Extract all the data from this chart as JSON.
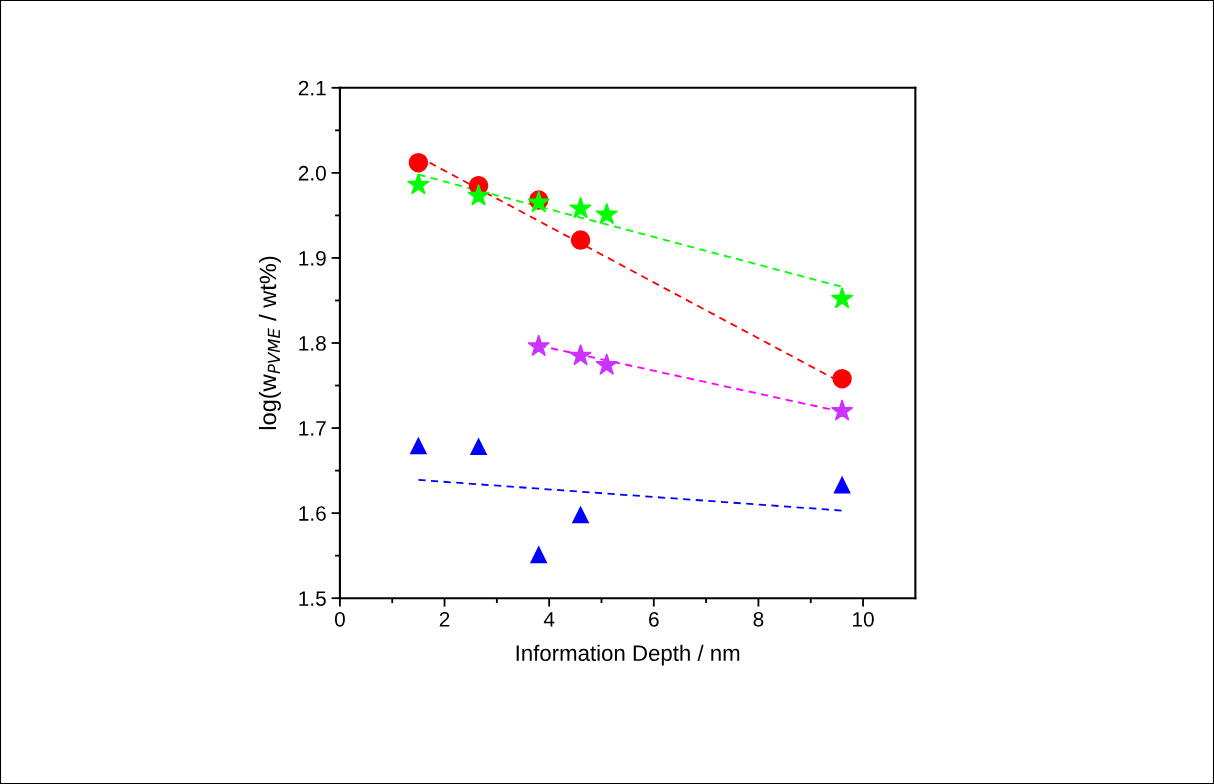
{
  "chart_data": {
    "type": "scatter",
    "xlabel": "Information Depth / nm",
    "ylabel": "log(w$_{PVME}$ / wt%)",
    "xlim": [
      0,
      11
    ],
    "ylim": [
      1.5,
      2.1
    ],
    "xticks": [
      0,
      {
        "value": 1,
        "label": null
      },
      2,
      {
        "value": 3,
        "label": null
      },
      4,
      {
        "value": 5,
        "label": null
      },
      6,
      {
        "value": 7,
        "label": null
      },
      8,
      {
        "value": 9,
        "label": null
      },
      10
    ],
    "yticks": [
      1.5,
      {
        "value": 1.55,
        "label": null
      },
      1.6,
      {
        "value": 1.65,
        "label": null
      },
      1.7,
      {
        "value": 1.75,
        "label": null
      },
      1.8,
      {
        "value": 1.85,
        "label": null
      },
      1.9,
      {
        "value": 1.95,
        "label": null
      },
      "2.0",
      {
        "value": 2.05,
        "label": null
      },
      2.1
    ],
    "grid": false,
    "legend": false,
    "series": [
      {
        "type": "line",
        "color": "#ff0000",
        "x": [
          1.5,
          9.6
        ],
        "values": [
          2.019,
          1.753
        ],
        "line_style": "dashed",
        "marker": "none"
      },
      {
        "type": "line",
        "color": "#00ff00",
        "x": [
          1.5,
          9.6
        ],
        "values": [
          1.998,
          1.866
        ],
        "line_style": "dashed",
        "marker": "none"
      },
      {
        "type": "line",
        "color": "#ff00ff",
        "x": [
          3.8,
          9.6
        ],
        "values": [
          1.797,
          1.719
        ],
        "line_style": "dashed",
        "marker": "none"
      },
      {
        "type": "line",
        "color": "#0000ff",
        "x": [
          1.5,
          9.6
        ],
        "values": [
          1.639,
          1.603
        ],
        "line_style": "dashed",
        "marker": "none"
      },
      {
        "type": "scatter",
        "color": "#ff0000",
        "marker": "circle",
        "x": [
          1.5,
          2.65,
          3.8,
          4.6,
          9.6
        ],
        "values": [
          2.012,
          1.985,
          1.968,
          1.921,
          1.758
        ]
      },
      {
        "type": "scatter",
        "color": "#00ff00",
        "marker": "star",
        "x": [
          1.5,
          2.65,
          3.8,
          4.6,
          5.1,
          9.6
        ],
        "values": [
          1.986,
          1.973,
          1.965,
          1.958,
          1.951,
          1.852
        ]
      },
      {
        "type": "scatter",
        "color": "#cc33ff",
        "marker": "star",
        "x": [
          3.8,
          4.6,
          5.1,
          9.6
        ],
        "values": [
          1.796,
          1.785,
          1.774,
          1.72
        ]
      },
      {
        "type": "scatter",
        "color": "#0000ff",
        "marker": "triangle",
        "x": [
          1.5,
          2.65,
          3.8,
          4.6,
          9.6
        ],
        "values": [
          1.679,
          1.678,
          1.551,
          1.598,
          1.633
        ]
      }
    ]
  }
}
